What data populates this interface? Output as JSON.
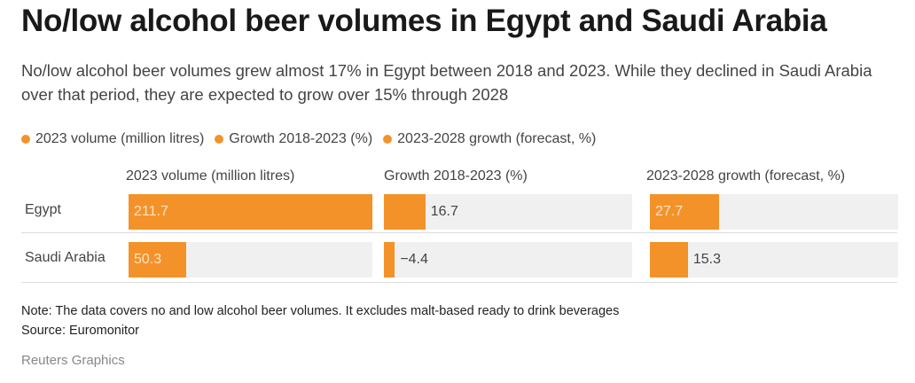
{
  "title": "No/low alcohol beer volumes in Egypt and Saudi Arabia",
  "subtitle": "No/low alcohol beer volumes grew almost 17% in Egypt between 2018 and 2023. While they declined in Saudi Arabia over that period, they are expected to grow over 15% through 2028",
  "legend": [
    "2023 volume (million litres)",
    "Growth 2018-2023 (%)",
    "2023-2028 growth (forecast, %)"
  ],
  "colors": {
    "bar": "#f4922a",
    "track": "#f0f0f0"
  },
  "chart_data": {
    "type": "bar",
    "orientation": "horizontal",
    "categories": [
      "Egypt",
      "Saudi Arabia"
    ],
    "series": [
      {
        "name": "2023 volume (million litres)",
        "values": [
          211.7,
          50.3
        ],
        "labels": [
          "211.7",
          "50.3"
        ],
        "max": 211.7
      },
      {
        "name": "Growth 2018-2023 (%)",
        "values": [
          16.7,
          -4.4
        ],
        "labels": [
          "16.7",
          "−4.4"
        ],
        "max": 100
      },
      {
        "name": "2023-2028 growth (forecast, %)",
        "values": [
          27.7,
          15.3
        ],
        "labels": [
          "27.7",
          "15.3"
        ],
        "max": 100
      }
    ]
  },
  "note": "Note: The data covers no and low alcohol beer volumes. It excludes malt-based ready to drink beverages",
  "source": "Source: Euromonitor",
  "credit": "Reuters Graphics"
}
